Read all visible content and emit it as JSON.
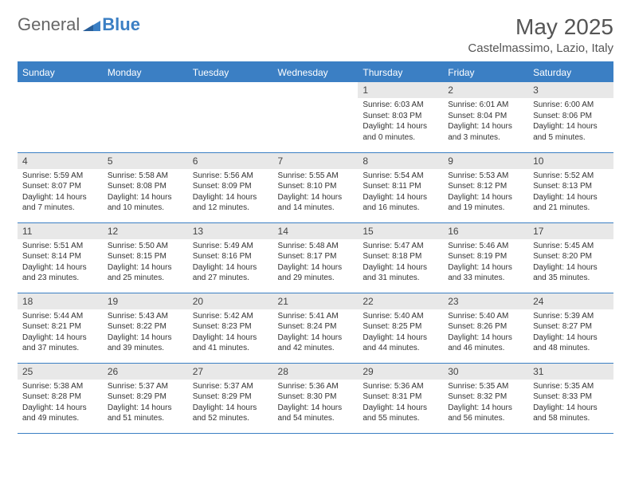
{
  "logo": {
    "part1": "General",
    "part2": "Blue"
  },
  "title": "May 2025",
  "location": "Castelmassimo, Lazio, Italy",
  "colors": {
    "header_bg": "#3b7fc4",
    "daynum_bg": "#e8e8e8",
    "border": "#3b7fc4",
    "text": "#333333",
    "logo_gray": "#666666",
    "logo_blue": "#3b7fc4",
    "title_color": "#555555"
  },
  "weekdays": [
    "Sunday",
    "Monday",
    "Tuesday",
    "Wednesday",
    "Thursday",
    "Friday",
    "Saturday"
  ],
  "weeks": [
    [
      null,
      null,
      null,
      null,
      {
        "n": "1",
        "sr": "Sunrise: 6:03 AM",
        "ss": "Sunset: 8:03 PM",
        "dl": "Daylight: 14 hours and 0 minutes."
      },
      {
        "n": "2",
        "sr": "Sunrise: 6:01 AM",
        "ss": "Sunset: 8:04 PM",
        "dl": "Daylight: 14 hours and 3 minutes."
      },
      {
        "n": "3",
        "sr": "Sunrise: 6:00 AM",
        "ss": "Sunset: 8:06 PM",
        "dl": "Daylight: 14 hours and 5 minutes."
      }
    ],
    [
      {
        "n": "4",
        "sr": "Sunrise: 5:59 AM",
        "ss": "Sunset: 8:07 PM",
        "dl": "Daylight: 14 hours and 7 minutes."
      },
      {
        "n": "5",
        "sr": "Sunrise: 5:58 AM",
        "ss": "Sunset: 8:08 PM",
        "dl": "Daylight: 14 hours and 10 minutes."
      },
      {
        "n": "6",
        "sr": "Sunrise: 5:56 AM",
        "ss": "Sunset: 8:09 PM",
        "dl": "Daylight: 14 hours and 12 minutes."
      },
      {
        "n": "7",
        "sr": "Sunrise: 5:55 AM",
        "ss": "Sunset: 8:10 PM",
        "dl": "Daylight: 14 hours and 14 minutes."
      },
      {
        "n": "8",
        "sr": "Sunrise: 5:54 AM",
        "ss": "Sunset: 8:11 PM",
        "dl": "Daylight: 14 hours and 16 minutes."
      },
      {
        "n": "9",
        "sr": "Sunrise: 5:53 AM",
        "ss": "Sunset: 8:12 PM",
        "dl": "Daylight: 14 hours and 19 minutes."
      },
      {
        "n": "10",
        "sr": "Sunrise: 5:52 AM",
        "ss": "Sunset: 8:13 PM",
        "dl": "Daylight: 14 hours and 21 minutes."
      }
    ],
    [
      {
        "n": "11",
        "sr": "Sunrise: 5:51 AM",
        "ss": "Sunset: 8:14 PM",
        "dl": "Daylight: 14 hours and 23 minutes."
      },
      {
        "n": "12",
        "sr": "Sunrise: 5:50 AM",
        "ss": "Sunset: 8:15 PM",
        "dl": "Daylight: 14 hours and 25 minutes."
      },
      {
        "n": "13",
        "sr": "Sunrise: 5:49 AM",
        "ss": "Sunset: 8:16 PM",
        "dl": "Daylight: 14 hours and 27 minutes."
      },
      {
        "n": "14",
        "sr": "Sunrise: 5:48 AM",
        "ss": "Sunset: 8:17 PM",
        "dl": "Daylight: 14 hours and 29 minutes."
      },
      {
        "n": "15",
        "sr": "Sunrise: 5:47 AM",
        "ss": "Sunset: 8:18 PM",
        "dl": "Daylight: 14 hours and 31 minutes."
      },
      {
        "n": "16",
        "sr": "Sunrise: 5:46 AM",
        "ss": "Sunset: 8:19 PM",
        "dl": "Daylight: 14 hours and 33 minutes."
      },
      {
        "n": "17",
        "sr": "Sunrise: 5:45 AM",
        "ss": "Sunset: 8:20 PM",
        "dl": "Daylight: 14 hours and 35 minutes."
      }
    ],
    [
      {
        "n": "18",
        "sr": "Sunrise: 5:44 AM",
        "ss": "Sunset: 8:21 PM",
        "dl": "Daylight: 14 hours and 37 minutes."
      },
      {
        "n": "19",
        "sr": "Sunrise: 5:43 AM",
        "ss": "Sunset: 8:22 PM",
        "dl": "Daylight: 14 hours and 39 minutes."
      },
      {
        "n": "20",
        "sr": "Sunrise: 5:42 AM",
        "ss": "Sunset: 8:23 PM",
        "dl": "Daylight: 14 hours and 41 minutes."
      },
      {
        "n": "21",
        "sr": "Sunrise: 5:41 AM",
        "ss": "Sunset: 8:24 PM",
        "dl": "Daylight: 14 hours and 42 minutes."
      },
      {
        "n": "22",
        "sr": "Sunrise: 5:40 AM",
        "ss": "Sunset: 8:25 PM",
        "dl": "Daylight: 14 hours and 44 minutes."
      },
      {
        "n": "23",
        "sr": "Sunrise: 5:40 AM",
        "ss": "Sunset: 8:26 PM",
        "dl": "Daylight: 14 hours and 46 minutes."
      },
      {
        "n": "24",
        "sr": "Sunrise: 5:39 AM",
        "ss": "Sunset: 8:27 PM",
        "dl": "Daylight: 14 hours and 48 minutes."
      }
    ],
    [
      {
        "n": "25",
        "sr": "Sunrise: 5:38 AM",
        "ss": "Sunset: 8:28 PM",
        "dl": "Daylight: 14 hours and 49 minutes."
      },
      {
        "n": "26",
        "sr": "Sunrise: 5:37 AM",
        "ss": "Sunset: 8:29 PM",
        "dl": "Daylight: 14 hours and 51 minutes."
      },
      {
        "n": "27",
        "sr": "Sunrise: 5:37 AM",
        "ss": "Sunset: 8:29 PM",
        "dl": "Daylight: 14 hours and 52 minutes."
      },
      {
        "n": "28",
        "sr": "Sunrise: 5:36 AM",
        "ss": "Sunset: 8:30 PM",
        "dl": "Daylight: 14 hours and 54 minutes."
      },
      {
        "n": "29",
        "sr": "Sunrise: 5:36 AM",
        "ss": "Sunset: 8:31 PM",
        "dl": "Daylight: 14 hours and 55 minutes."
      },
      {
        "n": "30",
        "sr": "Sunrise: 5:35 AM",
        "ss": "Sunset: 8:32 PM",
        "dl": "Daylight: 14 hours and 56 minutes."
      },
      {
        "n": "31",
        "sr": "Sunrise: 5:35 AM",
        "ss": "Sunset: 8:33 PM",
        "dl": "Daylight: 14 hours and 58 minutes."
      }
    ]
  ]
}
